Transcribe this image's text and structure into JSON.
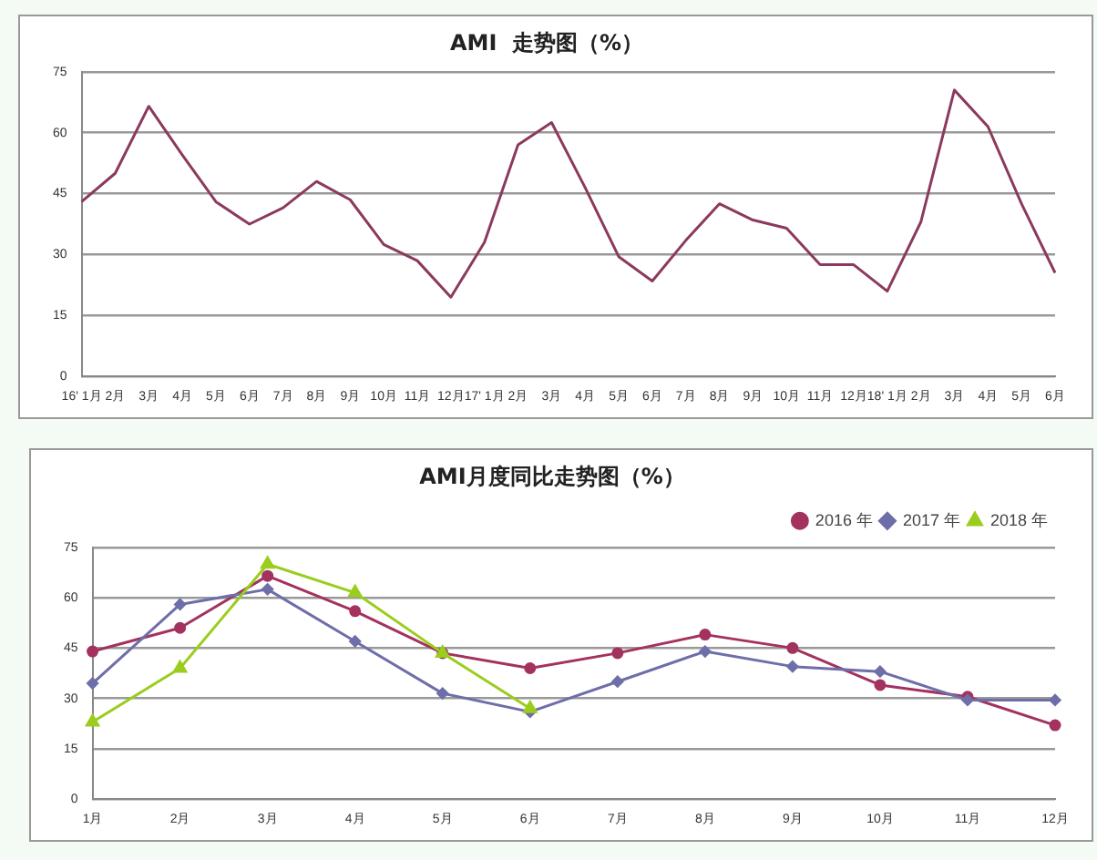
{
  "chart_data": [
    {
      "type": "line",
      "title": "AMI  走势图（%）",
      "categories": [
        "16' 1月",
        "2月",
        "3月",
        "4月",
        "5月",
        "6月",
        "7月",
        "8月",
        "9月",
        "10月",
        "11月",
        "12月",
        "17' 1月",
        "2月",
        "3月",
        "4月",
        "5月",
        "6月",
        "7月",
        "8月",
        "9月",
        "10月",
        "11月",
        "12月",
        "18' 1月",
        "2月",
        "3月",
        "4月",
        "5月",
        "6月"
      ],
      "series": [
        {
          "color": "#8b3a5e",
          "values": [
            43,
            50,
            66.5,
            54.5,
            43,
            37.5,
            41.5,
            48,
            43.5,
            32.5,
            28.5,
            19.5,
            33,
            57,
            62.5,
            46.5,
            29.5,
            23.5,
            33.5,
            42.5,
            38.5,
            36.5,
            27.5,
            27.5,
            21,
            38,
            70.5,
            61.5,
            42.5,
            25.5
          ]
        }
      ],
      "ylim": [
        0,
        75
      ],
      "yticks": [
        0,
        15,
        30,
        45,
        60,
        75
      ],
      "grid": "y",
      "marker": "none"
    },
    {
      "type": "line",
      "title": "AMI月度同比走势图（%）",
      "categories": [
        "1月",
        "2月",
        "3月",
        "4月",
        "5月",
        "6月",
        "7月",
        "8月",
        "9月",
        "10月",
        "11月",
        "12月"
      ],
      "series": [
        {
          "name": "2016 年",
          "color": "#a3325f",
          "marker": "circle",
          "values": [
            44,
            51,
            66.5,
            56,
            43.5,
            39,
            43.5,
            49,
            45,
            34,
            30.5,
            22
          ]
        },
        {
          "name": "2017 年",
          "color": "#6e6ea8",
          "marker": "diamond",
          "values": [
            34.5,
            58,
            62.5,
            47,
            31.5,
            26,
            35,
            44,
            39.5,
            38,
            29.5,
            29.5
          ]
        },
        {
          "name": "2018 年",
          "color": "#9acd1e",
          "marker": "triangle",
          "values": [
            23,
            39,
            70,
            61.5,
            43.5,
            27,
            null,
            null,
            null,
            null,
            null,
            null
          ]
        }
      ],
      "ylim": [
        0,
        75
      ],
      "yticks": [
        0,
        15,
        30,
        45,
        60,
        75
      ],
      "grid": "y",
      "legend": "top right"
    }
  ]
}
